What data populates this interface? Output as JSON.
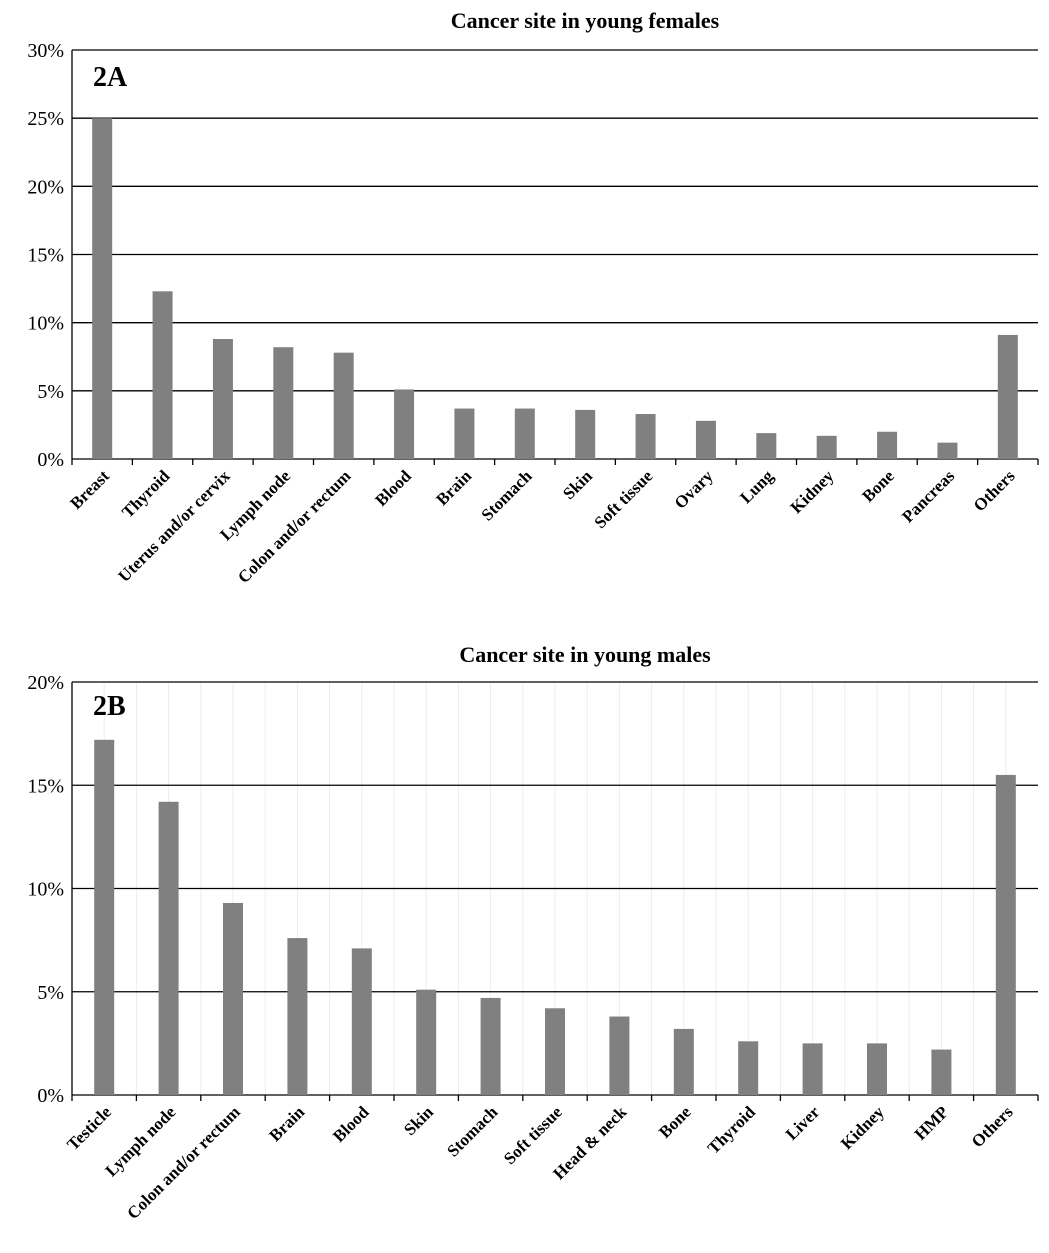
{
  "chart_data": [
    {
      "type": "bar",
      "title": "Cancer site in young females",
      "panel_label": "2A",
      "categories": [
        "Breast",
        "Thyroid",
        "Uterus and/or cervix",
        "Lymph node",
        "Colon and/or rectum",
        "Blood",
        "Brain",
        "Stomach",
        "Skin",
        "Soft tissue",
        "Ovary",
        "Lung",
        "Kidney",
        "Bone",
        "Pancreas",
        "Others"
      ],
      "values": [
        25.0,
        12.3,
        8.8,
        8.2,
        7.8,
        5.1,
        3.7,
        3.7,
        3.6,
        3.3,
        2.8,
        1.9,
        1.7,
        2.0,
        1.2,
        9.1
      ],
      "y_unit": "%",
      "ylim": [
        0,
        30
      ],
      "yticks": [
        0,
        5,
        10,
        15,
        20,
        25,
        30
      ],
      "ytick_labels": [
        "0%",
        "5%",
        "10%",
        "15%",
        "20%",
        "25%",
        "30%"
      ],
      "grid": true,
      "bar_color": "#808080"
    },
    {
      "type": "bar",
      "title": "Cancer site in young males",
      "panel_label": "2B",
      "categories": [
        "Testicle",
        "Lymph node",
        "Colon and/or rectum",
        "Brain",
        "Blood",
        "Skin",
        "Stomach",
        "Soft tissue",
        "Head & neck",
        "Bone",
        "Thyroid",
        "Liver",
        "Kidney",
        "HMP",
        "Others"
      ],
      "values": [
        17.2,
        14.2,
        9.3,
        7.6,
        7.1,
        5.1,
        4.7,
        4.2,
        3.8,
        3.2,
        2.6,
        2.5,
        2.5,
        2.2,
        15.5
      ],
      "y_unit": "%",
      "ylim": [
        0,
        20
      ],
      "yticks": [
        0,
        5,
        10,
        15,
        20
      ],
      "ytick_labels": [
        "0%",
        "5%",
        "10%",
        "15%",
        "20%"
      ],
      "grid": true,
      "bar_color": "#808080"
    }
  ]
}
